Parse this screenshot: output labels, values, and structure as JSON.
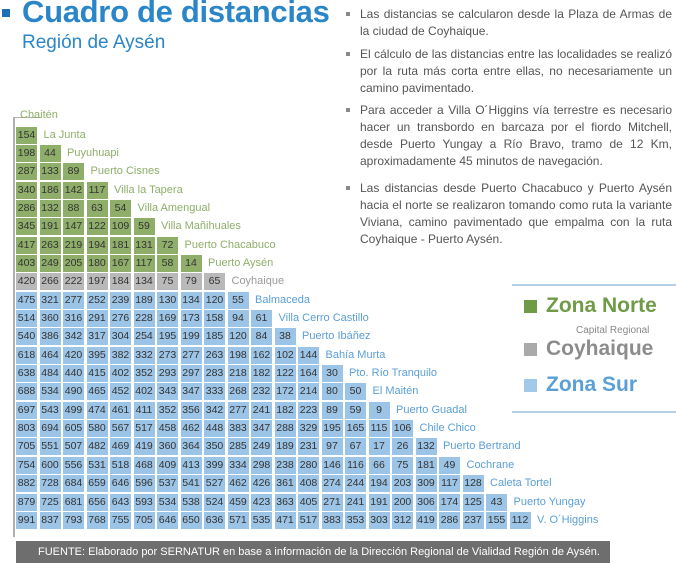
{
  "header": {
    "title": "Cuadro de distancias",
    "subtitle": "Región de Aysén"
  },
  "notes": [
    "Las distancias se calcularon desde la Plaza de Armas de la ciudad de Coyhaique.",
    "El cálculo de las distancias entre las localidades se realizó por la ruta más corta entre ellas, no necesariamente un camino pavimentado.",
    "Para acceder a Villa O´Higgins vía terrestre es necesario hacer un transbordo en barcaza por el fiordo Mitchell, desde Puerto Yungay a Río Bravo, tramo de 12 Km, aproximadamente 45 minutos de navegación.",
    "Las distancias desde Puerto Chacabuco y Puerto Aysén hacia el norte se realizaron tomando como ruta la variante Viviana, camino pavimentado que empalma con la ruta Coyhaique - Puerto Aysén."
  ],
  "matrix": {
    "first_town": "Chaitén",
    "rows": [
      {
        "town": "La Junta",
        "zone": "norte",
        "values": [
          154
        ]
      },
      {
        "town": "Puyuhuapi",
        "zone": "norte",
        "values": [
          198,
          44
        ]
      },
      {
        "town": "Puerto Cisnes",
        "zone": "norte",
        "values": [
          287,
          133,
          89
        ]
      },
      {
        "town": "Villa la Tapera",
        "zone": "norte",
        "values": [
          340,
          186,
          142,
          117
        ]
      },
      {
        "town": "Villa Amengual",
        "zone": "norte",
        "values": [
          286,
          132,
          88,
          63,
          54
        ]
      },
      {
        "town": "Villa Mañihuales",
        "zone": "norte",
        "values": [
          345,
          191,
          147,
          122,
          109,
          59
        ]
      },
      {
        "town": "Puerto Chacabuco",
        "zone": "norte",
        "values": [
          417,
          263,
          219,
          194,
          181,
          131,
          72
        ]
      },
      {
        "town": "Puerto Aysén",
        "zone": "norte",
        "values": [
          403,
          249,
          205,
          180,
          167,
          117,
          58,
          14
        ]
      },
      {
        "town": "Coyhaique",
        "zone": "coy",
        "values": [
          420,
          266,
          222,
          197,
          184,
          134,
          75,
          79,
          65
        ]
      },
      {
        "town": "Balmaceda",
        "zone": "sur",
        "values": [
          475,
          321,
          277,
          252,
          239,
          189,
          130,
          134,
          120,
          55
        ]
      },
      {
        "town": "Villa Cerro Castillo",
        "zone": "sur",
        "values": [
          514,
          360,
          316,
          291,
          276,
          228,
          169,
          173,
          158,
          94,
          61
        ]
      },
      {
        "town": "Puerto Ibáñez",
        "zone": "sur",
        "values": [
          540,
          386,
          342,
          317,
          304,
          254,
          195,
          199,
          185,
          120,
          84,
          38
        ]
      },
      {
        "town": "Bahía Murta",
        "zone": "sur",
        "values": [
          618,
          464,
          420,
          395,
          382,
          332,
          273,
          277,
          263,
          198,
          162,
          102,
          144
        ]
      },
      {
        "town": "Pto. Río Tranquilo",
        "zone": "sur",
        "values": [
          638,
          484,
          440,
          415,
          402,
          352,
          293,
          297,
          283,
          218,
          182,
          122,
          164,
          30
        ]
      },
      {
        "town": "El Maitén",
        "zone": "sur",
        "values": [
          688,
          534,
          490,
          465,
          452,
          402,
          343,
          347,
          333,
          268,
          232,
          172,
          214,
          80,
          50
        ]
      },
      {
        "town": "Puerto Guadal",
        "zone": "sur",
        "values": [
          697,
          543,
          499,
          474,
          461,
          411,
          352,
          356,
          342,
          277,
          241,
          182,
          223,
          89,
          59,
          9
        ]
      },
      {
        "town": "Chile Chico",
        "zone": "sur",
        "values": [
          803,
          694,
          605,
          580,
          567,
          517,
          458,
          462,
          448,
          383,
          347,
          288,
          329,
          195,
          165,
          115,
          106
        ]
      },
      {
        "town": "Puerto Bertrand",
        "zone": "sur",
        "values": [
          705,
          551,
          507,
          482,
          469,
          419,
          360,
          364,
          350,
          285,
          249,
          189,
          231,
          97,
          67,
          17,
          26,
          132
        ]
      },
      {
        "town": "Cochrane",
        "zone": "sur",
        "values": [
          754,
          600,
          556,
          531,
          518,
          468,
          409,
          413,
          399,
          334,
          298,
          238,
          280,
          146,
          116,
          66,
          75,
          181,
          49
        ]
      },
      {
        "town": "Caleta Tortel",
        "zone": "sur",
        "values": [
          882,
          728,
          684,
          659,
          646,
          596,
          537,
          541,
          527,
          462,
          426,
          361,
          408,
          274,
          244,
          194,
          203,
          309,
          117,
          128
        ]
      },
      {
        "town": "Puerto Yungay",
        "zone": "sur",
        "values": [
          879,
          725,
          681,
          656,
          643,
          593,
          534,
          538,
          524,
          459,
          423,
          363,
          405,
          271,
          241,
          191,
          200,
          306,
          174,
          125,
          43
        ]
      },
      {
        "town": "V. O´Higgins",
        "zone": "sur",
        "values": [
          991,
          837,
          793,
          768,
          755,
          705,
          646,
          650,
          636,
          571,
          535,
          471,
          517,
          383,
          353,
          303,
          312,
          419,
          286,
          237,
          155,
          112
        ]
      }
    ]
  },
  "legend": {
    "norte": "Zona Norte",
    "capital": "Capital Regional",
    "coyhaique": "Coyhaique",
    "sur": "Zona Sur"
  },
  "colors": {
    "norte": "#8fae6a",
    "coyhaique": "#b9b9b9",
    "sur": "#9cc4e6",
    "title": "#2a86c8"
  },
  "footer": "FUENTE: Elaborado  por SERNATUR en base a información de la Dirección Regional de Vialidad Región de Aysén."
}
